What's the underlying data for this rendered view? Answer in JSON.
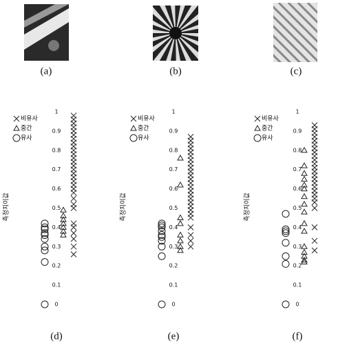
{
  "panels": [
    {
      "label": "(a)"
    },
    {
      "label": "(b)"
    },
    {
      "label": "(c)"
    }
  ],
  "chart_data": [
    {
      "type": "scatter",
      "label": "(d)",
      "y_label": "측정치이값",
      "ylim": [
        0,
        1
      ],
      "yticks": [
        0,
        0.1,
        0.2,
        0.3,
        0.4,
        0.5,
        0.6,
        0.7,
        0.8,
        0.9,
        1
      ],
      "series": [
        {
          "name": "비유사",
          "marker": "x",
          "values": [
            0.98,
            0.96,
            0.94,
            0.92,
            0.9,
            0.88,
            0.86,
            0.84,
            0.82,
            0.8,
            0.78,
            0.76,
            0.74,
            0.72,
            0.7,
            0.68,
            0.66,
            0.64,
            0.62,
            0.6,
            0.58,
            0.55,
            0.52,
            0.5,
            0.42,
            0.4,
            0.37,
            0.34,
            0.3,
            0.26
          ]
        },
        {
          "name": "중간",
          "marker": "triangle",
          "values": [
            0.49,
            0.46,
            0.44,
            0.42,
            0.4,
            0.38,
            0.36
          ]
        },
        {
          "name": "유사",
          "marker": "circle",
          "values": [
            0.42,
            0.4,
            0.39,
            0.37,
            0.36,
            0.34,
            0.3,
            0.28,
            0.22,
            0
          ]
        }
      ]
    },
    {
      "type": "scatter",
      "label": "(e)",
      "y_label": "측정치이값",
      "ylim": [
        0,
        1
      ],
      "yticks": [
        0,
        0.1,
        0.2,
        0.3,
        0.4,
        0.5,
        0.6,
        0.7,
        0.8,
        0.9,
        1
      ],
      "series": [
        {
          "name": "비유사",
          "marker": "x",
          "values": [
            0.87,
            0.85,
            0.83,
            0.81,
            0.79,
            0.77,
            0.75,
            0.73,
            0.71,
            0.69,
            0.67,
            0.65,
            0.63,
            0.61,
            0.59,
            0.57,
            0.55,
            0.53,
            0.51,
            0.49,
            0.47,
            0.45,
            0.4,
            0.36,
            0.33,
            0.3
          ]
        },
        {
          "name": "중간",
          "marker": "triangle",
          "values": [
            0.76,
            0.62,
            0.45,
            0.42,
            0.36,
            0.33,
            0.3,
            0.28
          ]
        },
        {
          "name": "유사",
          "marker": "circle",
          "values": [
            0.42,
            0.41,
            0.4,
            0.38,
            0.36,
            0.35,
            0.33,
            0.3,
            0.25,
            0
          ]
        }
      ]
    },
    {
      "type": "scatter",
      "label": "(f)",
      "y_label": "측정치이값",
      "ylim": [
        0,
        1
      ],
      "yticks": [
        0,
        0.1,
        0.2,
        0.3,
        0.4,
        0.5,
        0.6,
        0.7,
        0.8,
        0.9,
        1
      ],
      "series": [
        {
          "name": "비유사",
          "marker": "x",
          "values": [
            0.93,
            0.91,
            0.89,
            0.87,
            0.85,
            0.83,
            0.81,
            0.79,
            0.77,
            0.75,
            0.73,
            0.71,
            0.69,
            0.67,
            0.65,
            0.63,
            0.61,
            0.59,
            0.57,
            0.55,
            0.53,
            0.5,
            0.4,
            0.33,
            0.28
          ]
        },
        {
          "name": "중간",
          "marker": "triangle",
          "values": [
            0.8,
            0.72,
            0.68,
            0.65,
            0.62,
            0.6,
            0.56,
            0.52,
            0.48,
            0.42,
            0.38,
            0.3,
            0.27,
            0.25,
            0.23,
            0.22
          ]
        },
        {
          "name": "유사",
          "marker": "circle",
          "values": [
            0.47,
            0.39,
            0.38,
            0.37,
            0.32,
            0.25,
            0.21,
            0
          ]
        }
      ]
    }
  ]
}
